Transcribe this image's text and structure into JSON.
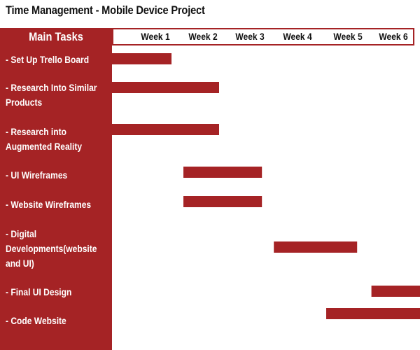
{
  "title": "Time Management - Mobile Device Project",
  "colors": {
    "accent": "#a52325",
    "text": "#111111",
    "label_text": "#ffffff"
  },
  "chart_data": {
    "type": "bar",
    "orientation": "gantt",
    "title": "Time Management - Mobile Device Project",
    "category_header": "Main Tasks",
    "weeks": [
      "Week 1",
      "Week 2",
      "Week 3",
      "Week 4",
      "Week 5",
      "Week 6"
    ],
    "xlim": [
      0,
      6.5
    ],
    "tasks": [
      {
        "label_lines": [
          "- Set Up Trello Board"
        ],
        "start": 0.0,
        "end": 1.25
      },
      {
        "label_lines": [
          "- Research Into Similar",
          "Products"
        ],
        "start": 0.0,
        "end": 2.25
      },
      {
        "label_lines": [
          "- Research into",
          "Augmented Reality"
        ],
        "start": 0.0,
        "end": 2.25
      },
      {
        "label_lines": [
          "- UI Wireframes"
        ],
        "start": 1.5,
        "end": 3.15
      },
      {
        "label_lines": [
          "- Website Wireframes"
        ],
        "start": 1.5,
        "end": 3.15
      },
      {
        "label_lines": [
          "- Digital",
          "Developments(website",
          "and UI)"
        ],
        "start": 3.4,
        "end": 5.15
      },
      {
        "label_lines": [
          "- Final UI Design"
        ],
        "start": 5.45,
        "end": 6.5
      },
      {
        "label_lines": [
          "- Code Website"
        ],
        "start": 4.5,
        "end": 6.5
      }
    ]
  }
}
